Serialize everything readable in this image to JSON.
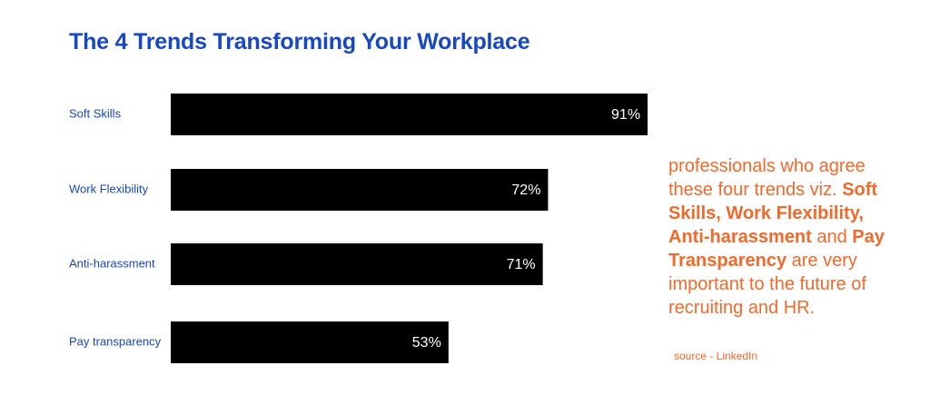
{
  "chart_data": {
    "type": "bar",
    "orientation": "horizontal",
    "title": "The 4 Trends Transforming Your Workplace",
    "categories": [
      "Soft Skills",
      "Work Flexibility",
      "Anti-harassment",
      "Pay transparency"
    ],
    "values": [
      91,
      72,
      71,
      53
    ],
    "value_labels": [
      "91%",
      "72%",
      "71%",
      "53%"
    ],
    "xlim": [
      0,
      100
    ],
    "grid": false,
    "bar_color": "#000000"
  },
  "colors": {
    "title": "#1747c4",
    "category_label": "#1747c4",
    "annotation": "#f4692a",
    "bar": "#000000",
    "value_label": "#ffffff"
  },
  "annotation": {
    "part1": "professionals who agree these four trends viz. ",
    "bold1": "Soft Skills, Work Flexibility, Anti-harassment",
    "part2": " and ",
    "bold2": "Pay Transparency",
    "part3": " are very important to the future of recruiting and HR."
  },
  "source": "source - LinkedIn"
}
